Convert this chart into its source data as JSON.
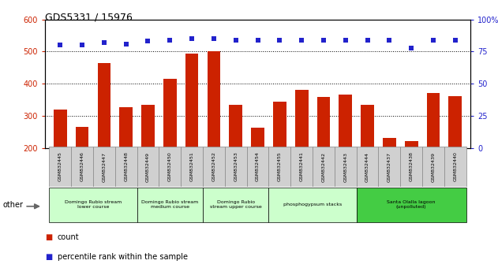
{
  "title": "GDS5331 / 15976",
  "samples": [
    "GSM832445",
    "GSM832446",
    "GSM832447",
    "GSM832448",
    "GSM832449",
    "GSM832450",
    "GSM832451",
    "GSM832452",
    "GSM832453",
    "GSM832454",
    "GSM832455",
    "GSM832441",
    "GSM832442",
    "GSM832443",
    "GSM832444",
    "GSM832437",
    "GSM832438",
    "GSM832439",
    "GSM832440"
  ],
  "counts": [
    320,
    265,
    465,
    328,
    335,
    415,
    495,
    500,
    335,
    263,
    345,
    380,
    358,
    367,
    335,
    232,
    220,
    370,
    362
  ],
  "percentiles": [
    80,
    80,
    82,
    81,
    83,
    84,
    85,
    85,
    84,
    84,
    84,
    84,
    84,
    84,
    84,
    84,
    78,
    84,
    84
  ],
  "ylim_left": [
    200,
    600
  ],
  "ylim_right": [
    0,
    100
  ],
  "yticks_left": [
    200,
    300,
    400,
    500,
    600
  ],
  "yticks_right": [
    0,
    25,
    50,
    75,
    100
  ],
  "bar_color": "#cc2200",
  "dot_color": "#2222cc",
  "hgrid_values": [
    300,
    400,
    500
  ],
  "groups": [
    {
      "label": "Domingo Rubio stream\nlower course",
      "start": 0,
      "end": 3,
      "color": "#ccffcc"
    },
    {
      "label": "Domingo Rubio stream\nmedium course",
      "start": 4,
      "end": 6,
      "color": "#ccffcc"
    },
    {
      "label": "Domingo Rubio\nstream upper course",
      "start": 7,
      "end": 9,
      "color": "#ccffcc"
    },
    {
      "label": "phosphogypsum stacks",
      "start": 10,
      "end": 13,
      "color": "#ccffcc"
    },
    {
      "label": "Santa Olalla lagoon\n(unpolluted)",
      "start": 14,
      "end": 18,
      "color": "#44cc44"
    }
  ],
  "other_label": "other",
  "legend_count_label": "count",
  "legend_pct_label": "percentile rank within the sample",
  "xlabel_bg": "#d0d0d0",
  "xlabel_border": "#888888"
}
